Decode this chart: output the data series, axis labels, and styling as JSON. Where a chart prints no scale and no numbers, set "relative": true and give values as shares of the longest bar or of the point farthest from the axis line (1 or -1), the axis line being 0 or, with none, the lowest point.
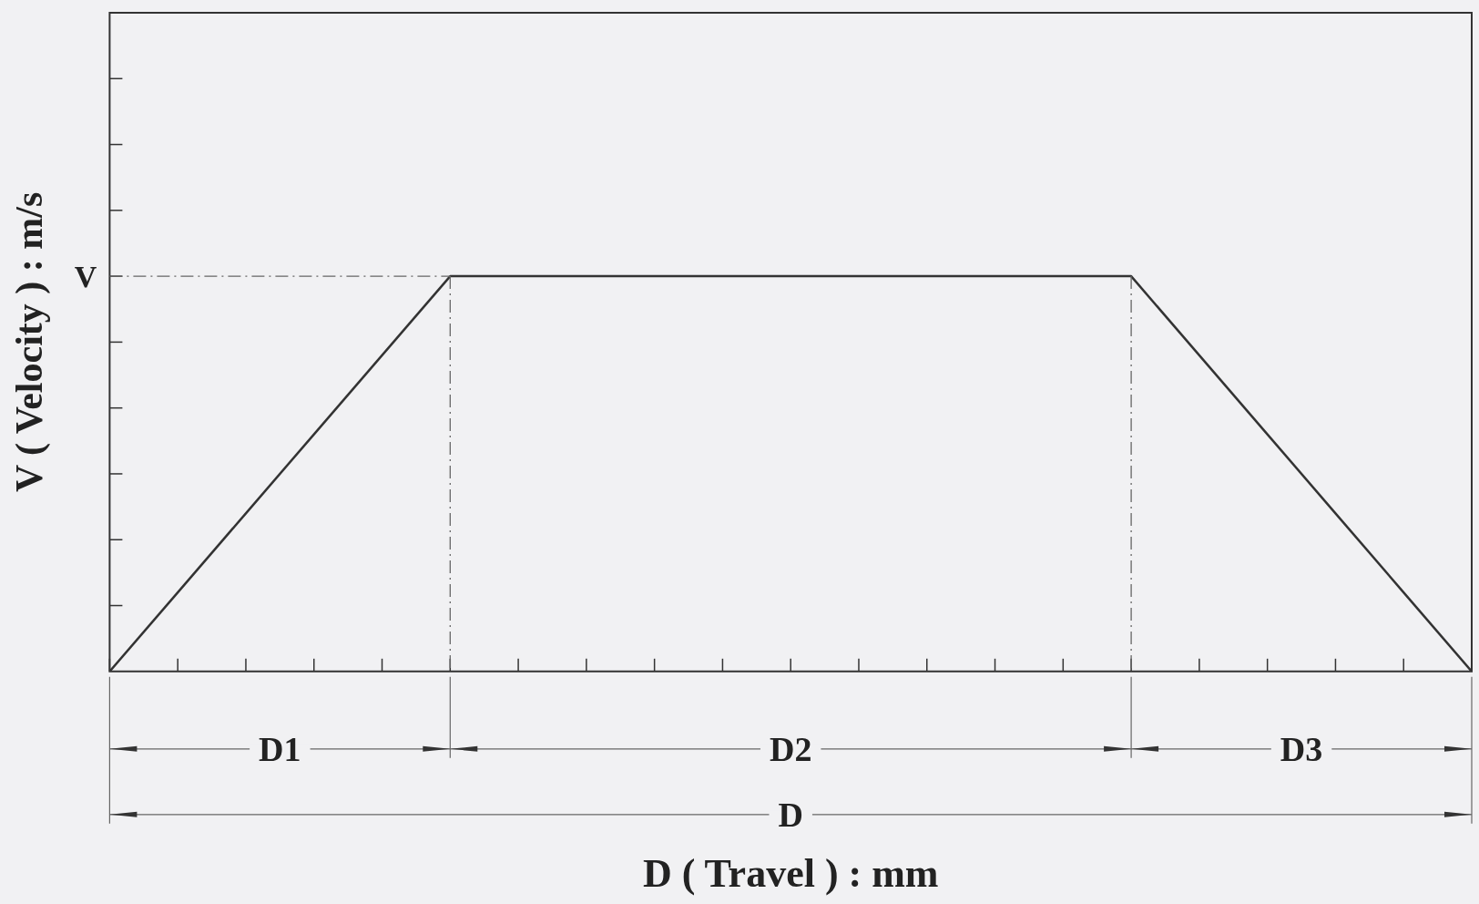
{
  "chart_data": {
    "type": "line",
    "relative": true,
    "xlabel": "D ( Travel ) : mm",
    "ylabel": "V ( Velocity ) : m/s",
    "categories": [
      null,
      null,
      null,
      null,
      null,
      null,
      null,
      null,
      null,
      null,
      null,
      null,
      null,
      null,
      null,
      null,
      null,
      null,
      null,
      null,
      null
    ],
    "values": [
      0,
      0.2,
      0.4,
      0.6,
      0.8,
      1,
      1,
      1,
      1,
      1,
      1,
      1,
      1,
      1,
      1,
      1,
      0.8,
      0.6,
      0.4,
      0.2,
      0
    ],
    "color": "#333333",
    "marker": "none",
    "line_style": "solid",
    "annotations": [
      "D1",
      "D2",
      "D3",
      "D",
      "V"
    ]
  }
}
